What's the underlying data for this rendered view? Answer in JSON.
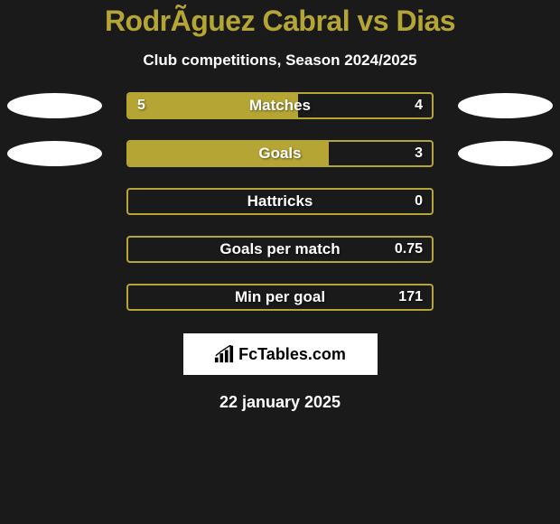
{
  "title": "RodrÃ­guez Cabral vs Dias",
  "subtitle": "Club competitions, Season 2024/2025",
  "date": "22 january 2025",
  "logo_text": "FcTables.com",
  "colors": {
    "background": "#1a1a1a",
    "accent": "#b5a534",
    "text_white": "#ffffff",
    "bubble": "#ffffff"
  },
  "stats": [
    {
      "label": "Matches",
      "left_value": "5",
      "right_value": "4",
      "fill_percent": 56,
      "show_left_bubble": true,
      "show_right_bubble": true
    },
    {
      "label": "Goals",
      "left_value": "",
      "right_value": "3",
      "fill_percent": 66,
      "show_left_bubble": true,
      "show_right_bubble": true
    },
    {
      "label": "Hattricks",
      "left_value": "",
      "right_value": "0",
      "fill_percent": 0,
      "show_left_bubble": false,
      "show_right_bubble": false
    },
    {
      "label": "Goals per match",
      "left_value": "",
      "right_value": "0.75",
      "fill_percent": 0,
      "show_left_bubble": false,
      "show_right_bubble": false
    },
    {
      "label": "Min per goal",
      "left_value": "",
      "right_value": "171",
      "fill_percent": 0,
      "show_left_bubble": false,
      "show_right_bubble": false
    }
  ]
}
